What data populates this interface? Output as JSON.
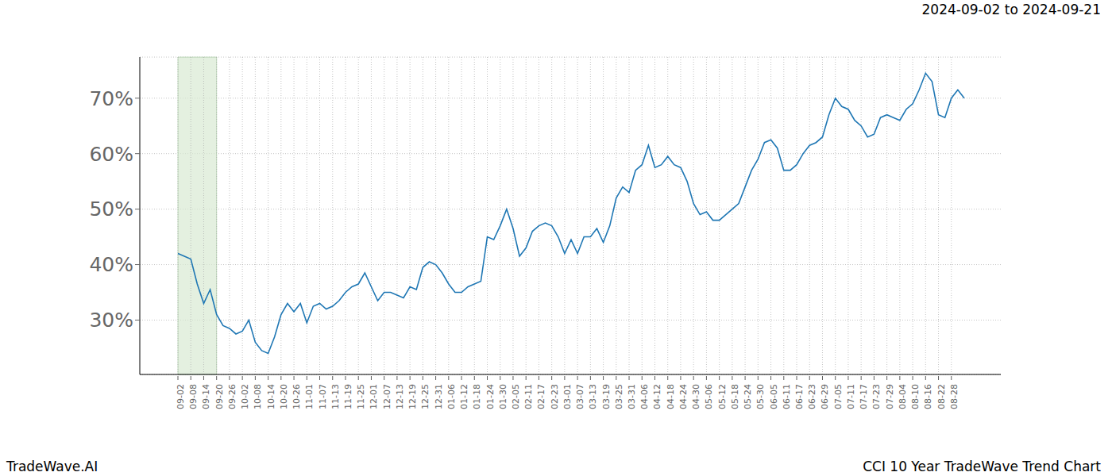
{
  "chart_data": {
    "type": "line",
    "title": "CCI 10 Year TradeWave Trend Chart",
    "subtitle": "2024-09-02 to 2024-09-21",
    "annotations": [
      "TradeWave.AI"
    ],
    "highlight": [
      "09-02",
      "09-20"
    ],
    "categories": [
      "09-02",
      null,
      "09-08",
      null,
      "09-14",
      null,
      "09-20",
      null,
      "09-26",
      null,
      "10-02",
      null,
      "10-08",
      null,
      "10-14",
      null,
      "10-20",
      null,
      "10-26",
      null,
      "11-01",
      null,
      "11-07",
      null,
      "11-13",
      null,
      "11-19",
      null,
      "11-25",
      null,
      "12-01",
      null,
      "12-07",
      null,
      "12-13",
      null,
      "12-19",
      null,
      "12-25",
      null,
      "12-31",
      null,
      "01-06",
      null,
      "01-12",
      null,
      "01-18",
      null,
      "01-24",
      null,
      "01-30",
      null,
      "02-05",
      null,
      "02-11",
      null,
      "02-17",
      null,
      "02-23",
      null,
      "03-01",
      null,
      "03-07",
      null,
      "03-13",
      null,
      "03-19",
      null,
      "03-25",
      null,
      "03-31",
      null,
      "04-06",
      null,
      "04-12",
      null,
      "04-18",
      null,
      "04-24",
      null,
      "04-30",
      null,
      "05-06",
      null,
      "05-12",
      null,
      "05-18",
      null,
      "05-24",
      null,
      "05-30",
      null,
      "06-05",
      null,
      "06-11",
      null,
      "06-17",
      null,
      "06-23",
      null,
      "06-29",
      null,
      "07-05",
      null,
      "07-11",
      null,
      "07-17",
      null,
      "07-23",
      null,
      "07-29",
      null,
      "08-04",
      null,
      "08-10",
      null,
      "08-16",
      null,
      "08-22",
      null,
      "08-28",
      null,
      null
    ],
    "values": [
      42,
      41.5,
      41,
      36.5,
      33,
      35.5,
      31,
      29,
      28.5,
      27.5,
      28,
      30,
      26,
      24.5,
      24,
      27,
      31,
      33,
      31.5,
      33,
      29.5,
      32.5,
      33,
      32,
      32.5,
      33.5,
      35,
      36,
      36.5,
      38.5,
      36,
      33.5,
      35,
      35,
      34.5,
      34,
      36,
      35.5,
      39.5,
      40.5,
      40,
      38.5,
      36.5,
      35,
      35,
      36,
      36.5,
      37,
      45,
      44.5,
      47,
      50,
      46.5,
      41.5,
      43,
      46,
      47,
      47.5,
      47,
      45,
      42,
      44.5,
      42,
      45,
      45,
      46.5,
      44,
      47,
      52,
      54,
      53,
      57,
      58,
      61.5,
      57.5,
      58,
      59.5,
      58,
      57.5,
      55,
      51,
      49,
      49.5,
      48,
      48,
      49,
      50,
      51,
      54,
      57,
      59,
      62,
      62.5,
      61,
      57,
      57,
      58,
      60,
      61.5,
      62,
      63,
      67,
      70,
      68.5,
      68,
      66,
      65,
      63,
      63.5,
      66.5,
      67,
      66.5,
      66,
      68,
      69,
      71.5,
      74.5,
      73,
      67,
      66.5,
      70,
      71.5,
      70
    ],
    "color": "#1f77b4",
    "ylim": [
      20.2,
      77.4
    ],
    "yticks": [
      {
        "value": 30,
        "label": "30%"
      },
      {
        "value": 40,
        "label": "40%"
      },
      {
        "value": 50,
        "label": "50%"
      },
      {
        "value": 60,
        "label": "60%"
      },
      {
        "value": 70,
        "label": "70%"
      }
    ],
    "grid": true
  }
}
